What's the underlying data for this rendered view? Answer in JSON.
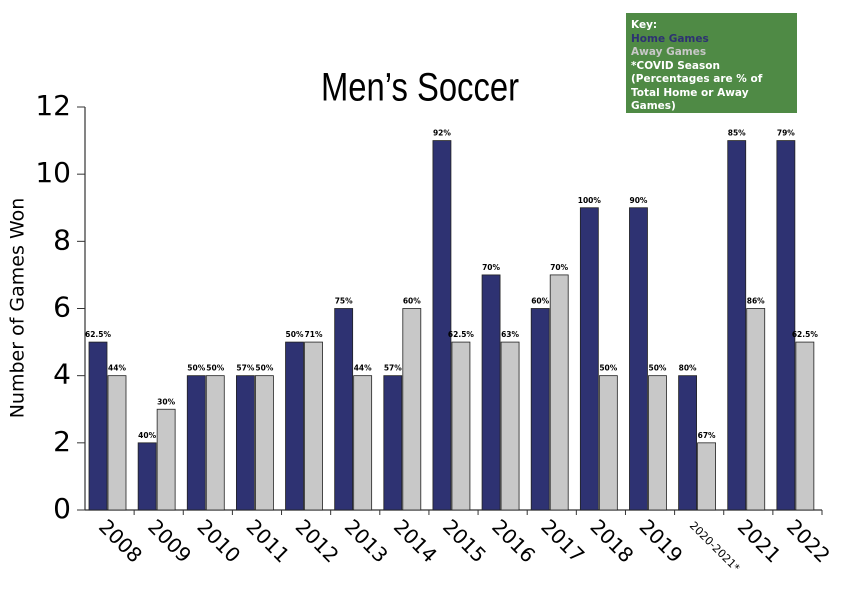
{
  "chart_data": {
    "type": "bar",
    "title": "Men’s Soccer",
    "y_label": "Number of Games Won",
    "categories": [
      "2008",
      "2009",
      "2010",
      "2011",
      "2012",
      "2013",
      "2014",
      "2015",
      "2016",
      "2017",
      "2018",
      "2019",
      "2020-2021*",
      "2021",
      "2022"
    ],
    "series": [
      {
        "name": "Home Games",
        "color": "#2e3272",
        "values": [
          5,
          2,
          4,
          4,
          5,
          6,
          4,
          11,
          7,
          6,
          9,
          9,
          4,
          11,
          11
        ],
        "percent_labels": [
          "62.5%",
          "40%",
          "50%",
          "57%",
          "50%",
          "75%",
          "57%",
          "92%",
          "70%",
          "60%",
          "100%",
          "90%",
          "80%",
          "85%",
          "79%"
        ]
      },
      {
        "name": "Away Games",
        "color": "#c8c8c8",
        "values": [
          4,
          3,
          4,
          4,
          5,
          4,
          6,
          5,
          5,
          7,
          4,
          4,
          2,
          6,
          5
        ],
        "percent_labels": [
          "44%",
          "30%",
          "50%",
          "50%",
          "71%",
          "44%",
          "60%",
          "62.5%",
          "63%",
          "70%",
          "50%",
          "50%",
          "67%",
          "86%",
          "62.5%"
        ]
      }
    ],
    "ylim": [
      0,
      12
    ],
    "yticks": [
      0,
      2,
      4,
      6,
      8,
      10,
      12
    ],
    "grid": false,
    "key": {
      "title": "Key:",
      "notes": [
        "*COVID Season",
        "(Percentages are % of Total Home or Away Games)"
      ],
      "color": "#4f8a45"
    }
  }
}
